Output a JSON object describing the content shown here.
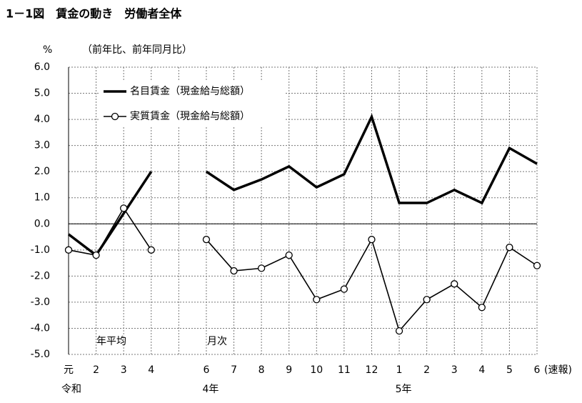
{
  "chart_data": {
    "type": "line",
    "title": "1－1図　賃金の動き　労働者全体",
    "y_unit": "%",
    "subtitle": "（前年比、前年同月比）",
    "categories": [
      "元",
      "2",
      "3",
      "4",
      null,
      "6",
      "7",
      "8",
      "9",
      "10",
      "11",
      "12",
      "1",
      "2",
      "3",
      "4",
      "5",
      "6"
    ],
    "x_group_labels": [
      "令和",
      "4年",
      "5年"
    ],
    "annotations": [
      "年平均",
      "月次",
      "(速報)"
    ],
    "series": [
      {
        "name": "名目賃金（現金給与総額）",
        "color": "#000000",
        "marker": false,
        "values": [
          -0.4,
          -1.2,
          0.4,
          2.0,
          null,
          2.0,
          1.3,
          1.7,
          2.2,
          1.4,
          1.9,
          4.1,
          0.8,
          0.8,
          1.3,
          0.8,
          2.9,
          2.3
        ]
      },
      {
        "name": "実質賃金（現金給与総額）",
        "color": "#000000",
        "marker": true,
        "values": [
          -1.0,
          -1.2,
          0.6,
          -1.0,
          null,
          -0.6,
          -1.8,
          -1.7,
          -1.2,
          -2.9,
          -2.5,
          -0.6,
          -4.1,
          -2.9,
          -2.3,
          -3.2,
          -0.9,
          -1.6
        ]
      }
    ],
    "ylim": [
      -5,
      6
    ],
    "yticks": [
      {
        "value": 6,
        "label": "6.0"
      },
      {
        "value": 5,
        "label": "5.0"
      },
      {
        "value": 4,
        "label": "4.0"
      },
      {
        "value": 3,
        "label": "3.0"
      },
      {
        "value": 2,
        "label": "2.0"
      },
      {
        "value": 1,
        "label": "1.0"
      },
      {
        "value": 0,
        "label": "0.0"
      },
      {
        "value": -1,
        "label": "-1.0"
      },
      {
        "value": -2,
        "label": "-2.0"
      },
      {
        "value": -3,
        "label": "-3.0"
      },
      {
        "value": -4,
        "label": "-4.0"
      },
      {
        "value": -5,
        "label": "-5.0"
      }
    ],
    "grid": true
  }
}
